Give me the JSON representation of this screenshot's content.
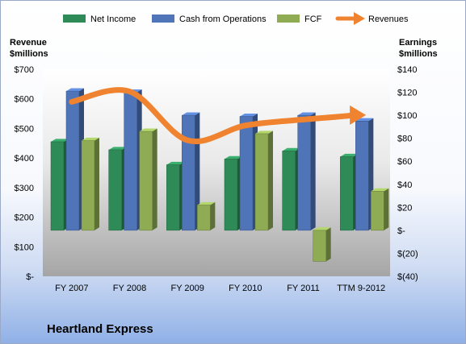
{
  "chart_data": {
    "type": "bar",
    "title": "Heartland Express",
    "categories": [
      "FY 2007",
      "FY 2008",
      "FY 2009",
      "FY 2010",
      "FY 2011",
      "TTM 9-2012"
    ],
    "left_axis": {
      "label_line1": "Revenue",
      "label_line2": "$millions",
      "range": [
        0,
        700
      ],
      "ticks": [
        0,
        100,
        200,
        300,
        400,
        500,
        600,
        700
      ],
      "tick_labels": [
        "$-",
        "$100",
        "$200",
        "$300",
        "$400",
        "$500",
        "$600",
        "$700"
      ]
    },
    "right_axis": {
      "label_line1": "Earnings",
      "label_line2": "$millions",
      "range": [
        -40,
        140
      ],
      "ticks": [
        -40,
        -20,
        0,
        20,
        40,
        60,
        80,
        100,
        120,
        140
      ],
      "tick_labels": [
        "$(40)",
        "$(20)",
        "$-",
        "$20",
        "$40",
        "$60",
        "$80",
        "$100",
        "$120",
        "$140"
      ]
    },
    "series": [
      {
        "name": "Net Income",
        "axis": "right",
        "kind": "bar",
        "color": "#2e8b57",
        "values": [
          77,
          70,
          57,
          62,
          69,
          64
        ]
      },
      {
        "name": "Cash from Operations",
        "axis": "right",
        "kind": "bar",
        "color": "#4f74b8",
        "values": [
          121,
          120,
          100,
          99,
          100,
          95
        ]
      },
      {
        "name": "FCF",
        "axis": "right",
        "kind": "bar",
        "color": "#8fac55",
        "values": [
          78,
          86,
          22,
          84,
          -27,
          34
        ]
      },
      {
        "name": "Revenues",
        "axis": "left",
        "kind": "line",
        "color": "#f0832f",
        "values": [
          590,
          625,
          460,
          510,
          530,
          545
        ]
      }
    ],
    "legend_position": "top",
    "grid": false
  }
}
